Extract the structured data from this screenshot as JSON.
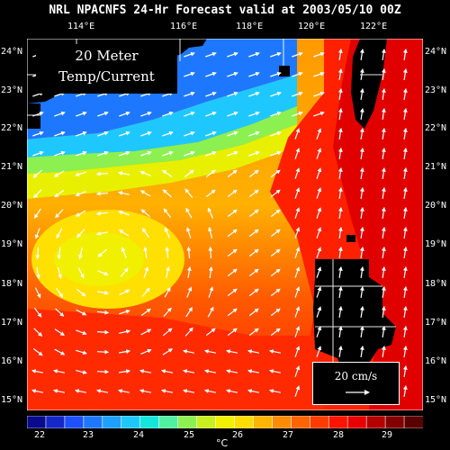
{
  "title": "NRL NPACNFS 24-Hr Forecast valid at 2003/05/10 00Z",
  "overlay": {
    "line1": "20 Meter",
    "line2": "Temp/Current"
  },
  "velocity_legend": {
    "label": "20 cm/s"
  },
  "lon_ticks": [
    "114°E",
    "116°E",
    "118°E",
    "120°E",
    "122°E"
  ],
  "lat_ticks": [
    "24°N",
    "23°N",
    "22°N",
    "21°N",
    "20°N",
    "19°N",
    "18°N",
    "17°N",
    "16°N",
    "15°N"
  ],
  "colorbar": {
    "labels": [
      "22",
      "23",
      "24",
      "25",
      "26",
      "27",
      "28",
      "29"
    ],
    "unit": "°C",
    "colors": [
      "#0a0a8c",
      "#1428c8",
      "#1e50ff",
      "#1e78ff",
      "#1ea0ff",
      "#1ec8ff",
      "#14e6dc",
      "#50f0a0",
      "#8cf050",
      "#c8f01e",
      "#f0f000",
      "#ffdc00",
      "#ffb400",
      "#ff8c00",
      "#ff6400",
      "#ff3c00",
      "#ff1400",
      "#e60000",
      "#b40000",
      "#820000",
      "#5a0000"
    ]
  },
  "chart_data": {
    "type": "heatmap",
    "title": "NRL NPACNFS 24-Hr Forecast valid at 2003/05/10 00Z",
    "x_range": [
      112.5,
      123.3
    ],
    "y_range": [
      14.8,
      24.3
    ],
    "color_range": [
      22,
      29
    ],
    "land_color": "#000000"
  }
}
